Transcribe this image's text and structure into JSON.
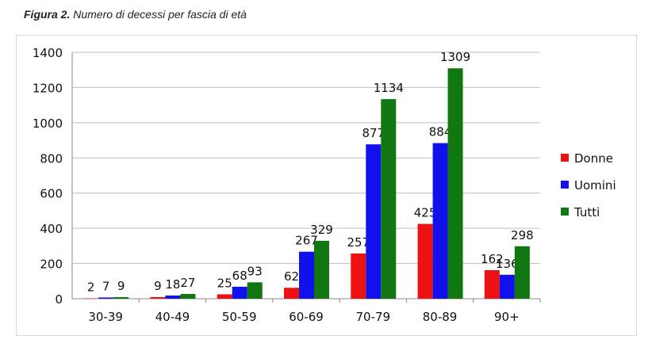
{
  "caption": {
    "label": "Figura 2.",
    "text": "Numero di decessi per fascia di età"
  },
  "colors": {
    "Donne": "#ee1111",
    "Uomini": "#1111ee",
    "Tutti": "#117711"
  },
  "chart_data": {
    "type": "bar",
    "categories": [
      "30-39",
      "40-49",
      "50-59",
      "60-69",
      "70-79",
      "80-89",
      "90+"
    ],
    "series": [
      {
        "name": "Donne",
        "values": [
          2,
          9,
          25,
          62,
          257,
          425,
          162
        ]
      },
      {
        "name": "Uomini",
        "values": [
          7,
          18,
          68,
          267,
          877,
          884,
          136
        ]
      },
      {
        "name": "Tutti",
        "values": [
          9,
          27,
          93,
          329,
          1134,
          1309,
          298
        ]
      }
    ],
    "ylim": [
      0,
      1400
    ],
    "yticks": [
      0,
      200,
      400,
      600,
      800,
      1000,
      1200,
      1400
    ],
    "grid": true,
    "legend": "right"
  }
}
